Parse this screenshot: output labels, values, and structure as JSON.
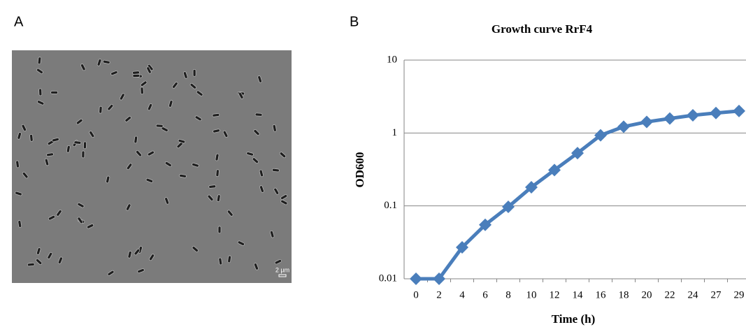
{
  "panel_labels": [
    "A",
    "B"
  ],
  "image": {
    "scale_bar": "2 µm"
  },
  "chart_data": {
    "type": "line",
    "title": "Growth curve RrF4",
    "x_label": "Time (h)",
    "y_label": "OD600",
    "categories": [
      "0",
      "2",
      "4",
      "6",
      "8",
      "10",
      "12",
      "14",
      "16",
      "18",
      "20",
      "22",
      "24",
      "27",
      "29"
    ],
    "values": [
      0.01,
      0.01,
      0.027,
      0.055,
      0.097,
      0.18,
      0.31,
      0.53,
      0.93,
      1.22,
      1.42,
      1.58,
      1.75,
      1.88,
      2.0
    ],
    "color": "#4a7ebb",
    "log_scale": true,
    "ylim": [
      0.01,
      10
    ],
    "yticks": [
      0.01,
      0.1,
      1,
      10
    ],
    "grid": true
  }
}
